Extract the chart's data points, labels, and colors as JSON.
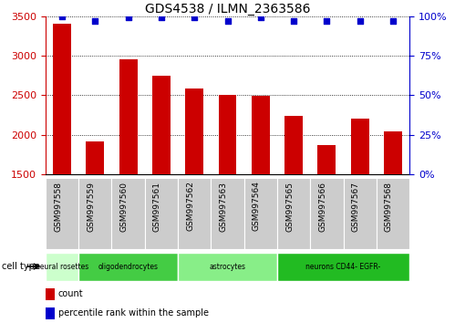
{
  "title": "GDS4538 / ILMN_2363586",
  "samples": [
    "GSM997558",
    "GSM997559",
    "GSM997560",
    "GSM997561",
    "GSM997562",
    "GSM997563",
    "GSM997564",
    "GSM997565",
    "GSM997566",
    "GSM997567",
    "GSM997568"
  ],
  "counts": [
    3400,
    1920,
    2950,
    2750,
    2580,
    2500,
    2490,
    2240,
    1870,
    2200,
    2040
  ],
  "percentiles": [
    100,
    97,
    99,
    99,
    99,
    97,
    99,
    97,
    97,
    97,
    97
  ],
  "ylim": [
    1500,
    3500
  ],
  "y2lim": [
    0,
    100
  ],
  "yticks": [
    1500,
    2000,
    2500,
    3000,
    3500
  ],
  "y2ticks": [
    0,
    25,
    50,
    75,
    100
  ],
  "bar_color": "#cc0000",
  "dot_color": "#0000cc",
  "cell_type_groups": [
    {
      "label": "neural rosettes",
      "start": 0,
      "end": 1,
      "color": "#ccffcc"
    },
    {
      "label": "oligodendrocytes",
      "start": 1,
      "end": 4,
      "color": "#44cc44"
    },
    {
      "label": "astrocytes",
      "start": 4,
      "end": 7,
      "color": "#88ee88"
    },
    {
      "label": "neurons CD44- EGFR-",
      "start": 7,
      "end": 11,
      "color": "#22bb22"
    }
  ],
  "tick_bg_color": "#cccccc",
  "cell_type_label": "cell type",
  "legend_count_label": "count",
  "legend_pct_label": "percentile rank within the sample"
}
